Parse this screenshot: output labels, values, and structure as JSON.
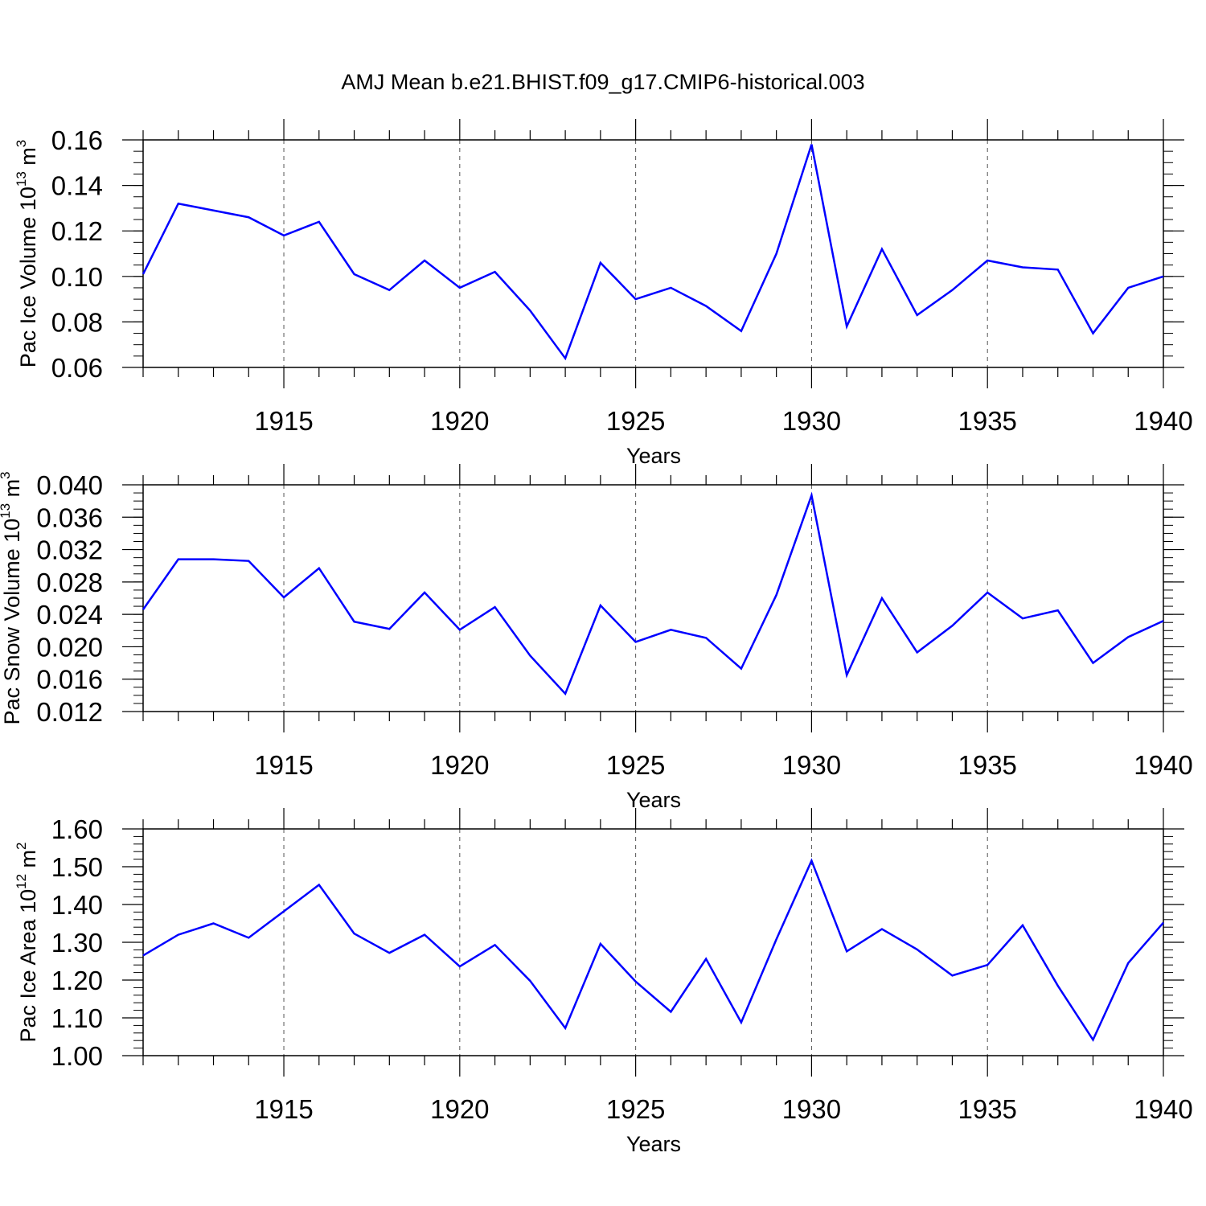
{
  "title": "AMJ Mean b.e21.BHIST.f09_g17.CMIP6-historical.003",
  "chart_data": [
    {
      "type": "line",
      "ylabel": {
        "text": "Pac Ice Volume 10",
        "exp": "13",
        "unit": " m",
        "unit_exp": "3"
      },
      "xlabel": "Years",
      "xlim": [
        1911,
        1940
      ],
      "ylim": [
        0.06,
        0.16
      ],
      "xticks": [
        1915,
        1920,
        1925,
        1930,
        1935,
        1940
      ],
      "yticks": [
        "0.06",
        "0.08",
        "0.10",
        "0.12",
        "0.14",
        "0.16"
      ],
      "y_minor_step": 0.005,
      "x_gridlines": [
        1915,
        1920,
        1925,
        1930,
        1935
      ],
      "color": "#0000ff",
      "x": [
        1911,
        1912,
        1913,
        1914,
        1915,
        1916,
        1917,
        1918,
        1919,
        1920,
        1921,
        1922,
        1923,
        1924,
        1925,
        1926,
        1927,
        1928,
        1929,
        1930,
        1931,
        1932,
        1933,
        1934,
        1935,
        1936,
        1937,
        1938,
        1939,
        1940
      ],
      "values": [
        0.101,
        0.132,
        0.129,
        0.126,
        0.118,
        0.124,
        0.101,
        0.094,
        0.107,
        0.095,
        0.102,
        0.085,
        0.064,
        0.106,
        0.09,
        0.095,
        0.087,
        0.076,
        0.11,
        0.158,
        0.078,
        0.112,
        0.083,
        0.094,
        0.107,
        0.104,
        0.103,
        0.075,
        0.095,
        0.1
      ]
    },
    {
      "type": "line",
      "ylabel": {
        "text": "Pac Snow Volume 10",
        "exp": "13",
        "unit": " m",
        "unit_exp": "3"
      },
      "xlabel": "Years",
      "xlim": [
        1911,
        1940
      ],
      "ylim": [
        0.012,
        0.04
      ],
      "xticks": [
        1915,
        1920,
        1925,
        1930,
        1935,
        1940
      ],
      "yticks": [
        "0.012",
        "0.016",
        "0.020",
        "0.024",
        "0.028",
        "0.032",
        "0.036",
        "0.040"
      ],
      "y_minor_step": 0.001,
      "x_gridlines": [
        1915,
        1920,
        1925,
        1930,
        1935
      ],
      "color": "#0000ff",
      "x": [
        1911,
        1912,
        1913,
        1914,
        1915,
        1916,
        1917,
        1918,
        1919,
        1920,
        1921,
        1922,
        1923,
        1924,
        1925,
        1926,
        1927,
        1928,
        1929,
        1930,
        1931,
        1932,
        1933,
        1934,
        1935,
        1936,
        1937,
        1938,
        1939,
        1940
      ],
      "values": [
        0.0246,
        0.0308,
        0.0308,
        0.0306,
        0.0261,
        0.0297,
        0.0231,
        0.0222,
        0.0267,
        0.0221,
        0.0249,
        0.0189,
        0.0142,
        0.0251,
        0.0206,
        0.0221,
        0.0211,
        0.0173,
        0.0264,
        0.0387,
        0.0165,
        0.026,
        0.0193,
        0.0226,
        0.0267,
        0.0235,
        0.0245,
        0.018,
        0.0212,
        0.0232
      ]
    },
    {
      "type": "line",
      "ylabel": {
        "text": "Pac Ice Area 10",
        "exp": "12",
        "unit": " m",
        "unit_exp": "2"
      },
      "xlabel": "Years",
      "xlim": [
        1911,
        1940
      ],
      "ylim": [
        1.0,
        1.6
      ],
      "xticks": [
        1915,
        1920,
        1925,
        1930,
        1935,
        1940
      ],
      "yticks": [
        "1.00",
        "1.10",
        "1.20",
        "1.30",
        "1.40",
        "1.50",
        "1.60"
      ],
      "y_minor_step": 0.02,
      "x_gridlines": [
        1915,
        1920,
        1925,
        1930,
        1935
      ],
      "color": "#0000ff",
      "x": [
        1911,
        1912,
        1913,
        1914,
        1915,
        1916,
        1917,
        1918,
        1919,
        1920,
        1921,
        1922,
        1923,
        1924,
        1925,
        1926,
        1927,
        1928,
        1929,
        1930,
        1931,
        1932,
        1933,
        1934,
        1935,
        1936,
        1937,
        1938,
        1939,
        1940
      ],
      "values": [
        1.265,
        1.32,
        1.35,
        1.312,
        1.382,
        1.452,
        1.323,
        1.272,
        1.32,
        1.236,
        1.293,
        1.198,
        1.073,
        1.296,
        1.196,
        1.116,
        1.256,
        1.088,
        1.308,
        1.516,
        1.276,
        1.335,
        1.281,
        1.212,
        1.24,
        1.345,
        1.185,
        1.042,
        1.245,
        1.352
      ]
    }
  ]
}
